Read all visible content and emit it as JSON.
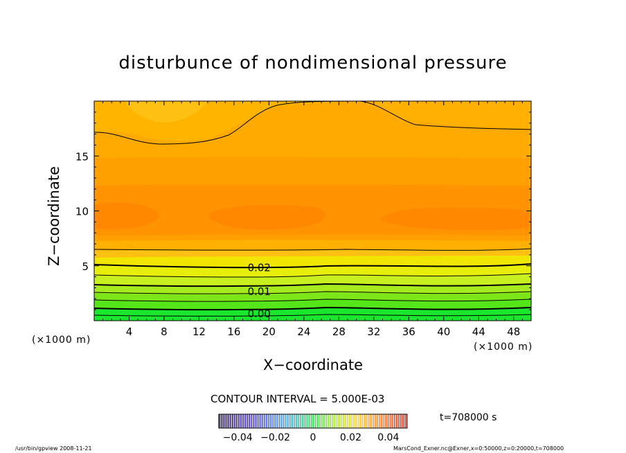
{
  "chart_data": {
    "type": "contour",
    "title": "disturbunce of nondimensional pressure",
    "xlabel": "X−coordinate",
    "ylabel": "Z−coordinate",
    "x_unit_left": "(×1000 m)",
    "x_unit_right": "(×1000 m)",
    "xlim": [
      0,
      50
    ],
    "ylim": [
      0,
      20
    ],
    "x_ticks": [
      4,
      8,
      12,
      16,
      20,
      24,
      28,
      32,
      36,
      40,
      44,
      48
    ],
    "y_ticks": [
      5,
      10,
      15
    ],
    "contour_labels": [
      {
        "text": "0.02",
        "x": 17.4,
        "z": 4.9
      },
      {
        "text": "0.01",
        "x": 17.4,
        "z": 2.7
      },
      {
        "text": "0.00",
        "x": 17.4,
        "z": 0.7
      }
    ],
    "contour_interval_text": "CONTOUR INTERVAL = 5.000E-03",
    "colorbar_ticks": [
      "−0.04",
      "−0.02",
      "0",
      "0.02",
      "0.04"
    ],
    "colorbar_range": [
      -0.05,
      0.05
    ],
    "time_text": "t=708000 s",
    "colors": {
      "bright_green": "#19e62d",
      "green": "#7de619",
      "yellow_green": "#c8f01e",
      "yellow": "#f0e600",
      "orange_light": "#ffc014",
      "orange": "#ffaa00",
      "orange_mid": "#ff9a00",
      "orange_dark": "#ff8800"
    }
  },
  "footer": {
    "left": "/usr/bin/gpview  2008-11-21",
    "right": "MarsCond_Exner.nc@Exner,x=0:50000,z=0:20000,t=708000"
  }
}
